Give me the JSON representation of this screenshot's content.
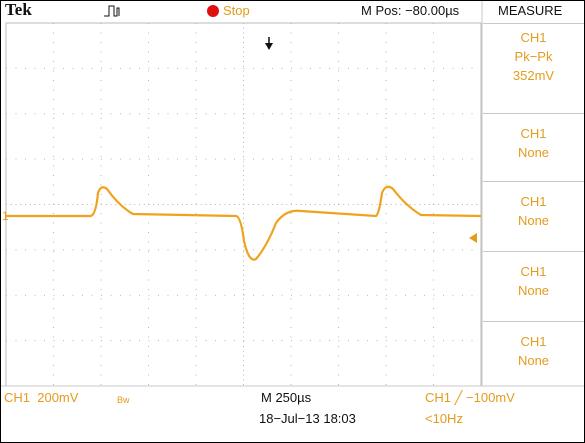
{
  "header": {
    "brand": "Tek",
    "status": "Stop",
    "position": "M Pos: −80.00µs",
    "menu": "MEASURE"
  },
  "channel_marker": "1",
  "measurements": [
    {
      "lines": [
        "CH1",
        "Pk−Pk",
        "352mV"
      ]
    },
    {
      "lines": [
        "CH1",
        "None"
      ]
    },
    {
      "lines": [
        "CH1",
        "None"
      ]
    },
    {
      "lines": [
        "CH1",
        "None"
      ]
    },
    {
      "lines": [
        "CH1",
        "None"
      ]
    }
  ],
  "footer": {
    "channel": "CH1  200mV",
    "bandwidth": "Bw",
    "timebase": "M 250µs",
    "date": "18−Jul−13 18:03",
    "trigger": "CH1 ╱ −100mV",
    "frequency": "<10Hz"
  }
}
